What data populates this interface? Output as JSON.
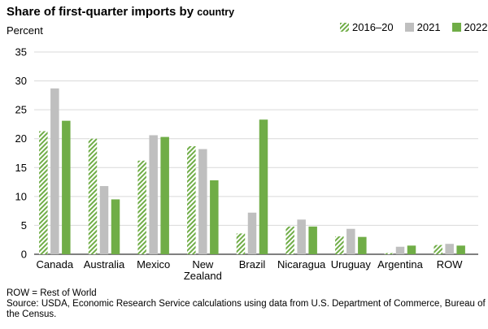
{
  "header": {
    "title_main": "Share of first-quarter imports by",
    "title_tail": "country",
    "ylabel": "Percent"
  },
  "legend": [
    "2016–20",
    "2021",
    "2022"
  ],
  "colors": {
    "green": "#70ad47",
    "gray": "#bfbfbf",
    "grid": "#d9d9d9"
  },
  "footer": {
    "row_note": "ROW = Rest of World",
    "source": "Source: USDA, Economic Research Service calculations using data from U.S. Department of Commerce, Bureau of the Census."
  },
  "chart_data": {
    "type": "bar",
    "title": "Share of first-quarter imports by country",
    "ylabel": "Percent",
    "ylim": [
      0,
      35
    ],
    "yticks": [
      0,
      5,
      10,
      15,
      20,
      25,
      30,
      35
    ],
    "grid": true,
    "legend_position": "top-right",
    "categories": [
      "Canada",
      "Australia",
      "Mexico",
      "New Zealand",
      "Brazil",
      "Nicaragua",
      "Uruguay",
      "Argentina",
      "ROW"
    ],
    "series": [
      {
        "name": "2016–20",
        "pattern": "hatched-green",
        "values": [
          21.3,
          20.0,
          16.2,
          18.7,
          3.6,
          4.8,
          3.1,
          0.2,
          1.6
        ]
      },
      {
        "name": "2021",
        "pattern": "gray",
        "values": [
          28.7,
          11.8,
          20.6,
          18.2,
          7.2,
          6.0,
          4.4,
          1.3,
          1.8
        ]
      },
      {
        "name": "2022",
        "pattern": "green",
        "values": [
          23.1,
          9.5,
          20.3,
          12.8,
          23.3,
          4.8,
          3.0,
          1.5,
          1.5
        ]
      }
    ]
  }
}
